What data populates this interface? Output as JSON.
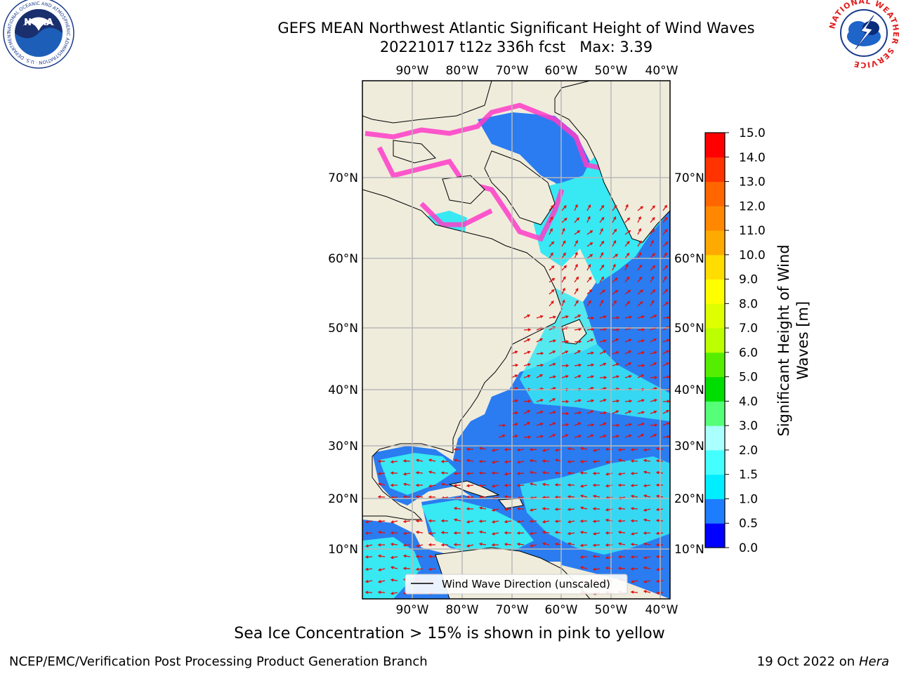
{
  "title": {
    "line1": "GEFS MEAN Northwest Atlantic Significant Height of Wind Waves",
    "line2": "20221017 t12z 336h fcst   Max: 3.39"
  },
  "logos": {
    "noaa": {
      "text": "NOAA",
      "ring_text": "NATIONAL OCEANIC AND ATMOSPHERIC ADMINISTRATION · U.S. DEPARTMENT OF COMMERCE"
    },
    "nws": {
      "ring_text": "NATIONAL WEATHER SERVICE"
    }
  },
  "map": {
    "lon_labels": [
      "90°W",
      "80°W",
      "70°W",
      "60°W",
      "50°W",
      "40°W"
    ],
    "lat_labels": [
      "70°N",
      "60°N",
      "50°N",
      "40°N",
      "30°N",
      "20°N",
      "10°N"
    ],
    "legend_label": "Wind Wave Direction (unscaled)",
    "colors": {
      "land": "#efecdc",
      "ocean_low": "#2a7cf0",
      "ocean_mid": "#38e8f2",
      "ice": "#ff3cc8",
      "arrows": "#e01010",
      "grid": "#b8b8b8"
    }
  },
  "colorbar": {
    "label": "Significant Height of Wind Waves [m]",
    "ticks": [
      "0.0",
      "0.5",
      "1.0",
      "1.5",
      "2.0",
      "3.0",
      "4.0",
      "5.0",
      "6.0",
      "7.0",
      "8.0",
      "9.0",
      "10.0",
      "11.0",
      "12.0",
      "13.0",
      "14.0",
      "15.0"
    ],
    "colors": [
      "#0000ff",
      "#1e7cff",
      "#00eeff",
      "#44ffff",
      "#aaffff",
      "#55ff77",
      "#00dd00",
      "#55ee00",
      "#bbff00",
      "#ddff00",
      "#ffff00",
      "#ffdd00",
      "#ffaa00",
      "#ff8800",
      "#ff6600",
      "#ff3300",
      "#ff0000"
    ]
  },
  "caption": "Sea Ice Concentration > 15% is shown in pink to yellow",
  "footer": {
    "left": "NCEP/EMC/Verification Post Processing Product Generation Branch",
    "date": "19 Oct 2022 on",
    "host": "Hera"
  }
}
